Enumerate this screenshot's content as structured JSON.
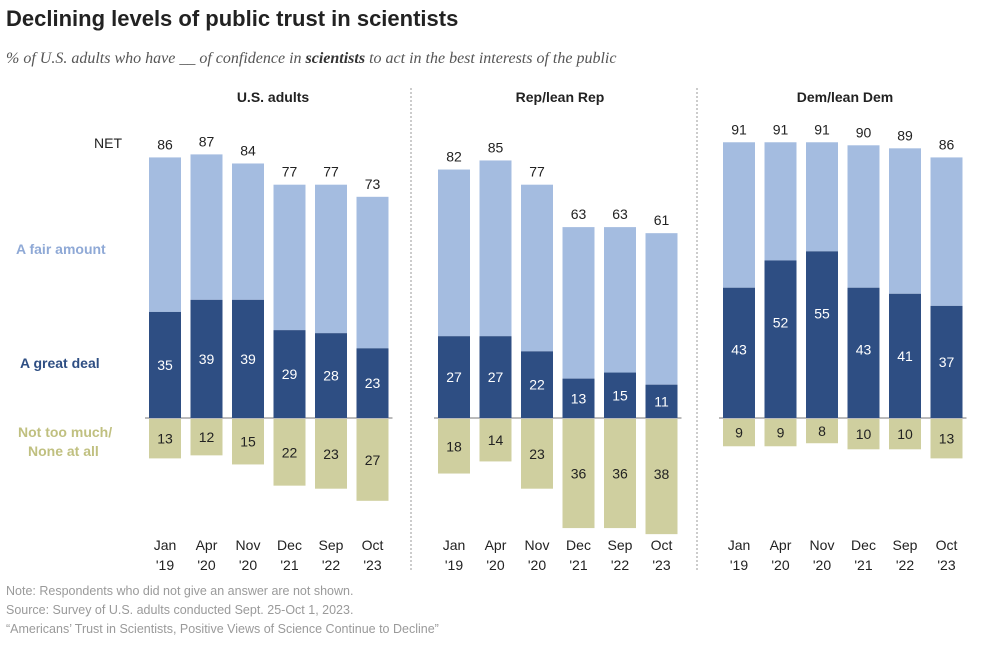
{
  "title": "Declining levels of public trust in scientists",
  "subtitle": {
    "prefix": "% of U.S. adults who have __ of confidence in ",
    "emphasis": "scientists",
    "suffix": " to act in the best interests of the public"
  },
  "row_labels": {
    "net": "NET",
    "fair": "A fair amount",
    "great": "A great deal",
    "not_line1": "Not too much/",
    "not_line2": "None at all"
  },
  "colors": {
    "great": "#2e4e83",
    "fair": "#a4bce0",
    "not": "#cfcf9f",
    "fair_label": "#8fa9d6",
    "great_label": "#2e4e83",
    "not_label": "#c0c080"
  },
  "chart_data": {
    "type": "bar",
    "categories": [
      [
        "Jan",
        "'19"
      ],
      [
        "Apr",
        "'20"
      ],
      [
        "Nov",
        "'20"
      ],
      [
        "Dec",
        "'21"
      ],
      [
        "Sep",
        "'22"
      ],
      [
        "Oct",
        "'23"
      ]
    ],
    "panels": [
      {
        "name": "U.S. adults",
        "net": [
          86,
          87,
          84,
          77,
          77,
          73
        ],
        "great_deal": [
          35,
          39,
          39,
          29,
          28,
          23
        ],
        "not_too_much": [
          13,
          12,
          15,
          22,
          23,
          27
        ]
      },
      {
        "name": "Rep/lean Rep",
        "net": [
          82,
          85,
          77,
          63,
          63,
          61
        ],
        "great_deal": [
          27,
          27,
          22,
          13,
          15,
          11
        ],
        "not_too_much": [
          18,
          14,
          23,
          36,
          36,
          38
        ]
      },
      {
        "name": "Dem/lean Dem",
        "net": [
          91,
          91,
          91,
          90,
          89,
          86
        ],
        "great_deal": [
          43,
          52,
          55,
          43,
          41,
          37
        ],
        "not_too_much": [
          9,
          9,
          8,
          10,
          10,
          13
        ]
      }
    ]
  },
  "notes": {
    "note": "Note: Respondents who did not give an answer are not shown.",
    "source": "Source: Survey of U.S. adults conducted Sept. 25-Oct 1, 2023.",
    "report": "“Americans’ Trust in Scientists, Positive Views of Science Continue to Decline”"
  }
}
